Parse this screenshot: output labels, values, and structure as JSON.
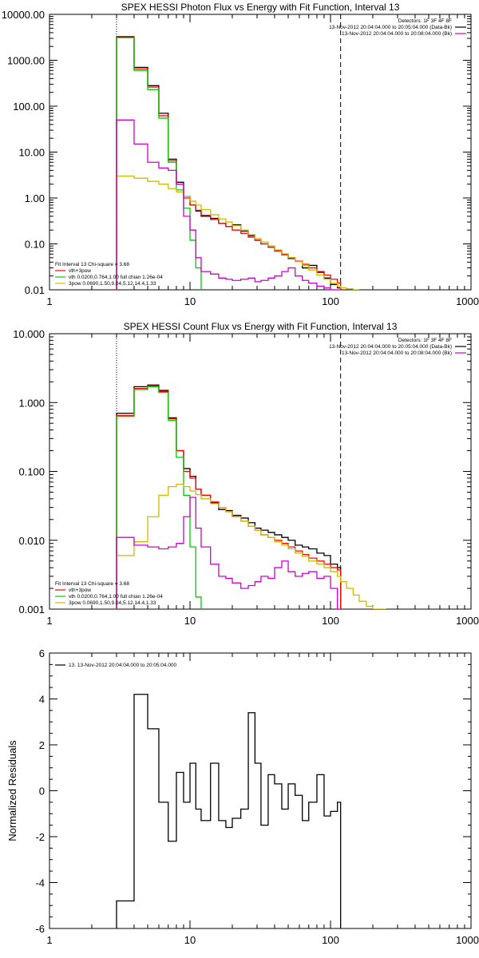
{
  "chart_data": [
    {
      "type": "line",
      "title": "SPEX HESSI Photon Flux vs Energy with Fit Function, Interval 13",
      "xscale": "log",
      "yscale": "log",
      "xlim": [
        1,
        1000
      ],
      "ylim": [
        0.01,
        10000
      ],
      "xticks": [
        "1",
        "10",
        "100",
        "1000"
      ],
      "yticks": [
        "0.01",
        "0.10",
        "1.00",
        "10.00",
        "100.00",
        "1000.00",
        "10000.00"
      ],
      "vlines": [
        3,
        118
      ],
      "info_lines": [
        "Detectors: 1F 3F 4F 8F",
        "13-Nov-2012 20:04:04.000 to 20:05:04.000 (Data-Bk)",
        "13-Nov-2012 20:04:04.000 to 20:08:04.000 (Bk)"
      ],
      "fit_header": "Fit Interval 13    Chi-square = 3.68",
      "legend": [
        {
          "label": "vth+3pow",
          "color": "#ff0000"
        },
        {
          "label": "vth 0.0200,0.764,1.00  full chian 1.26e-04",
          "color": "#00cc00"
        },
        {
          "label": "3pow 0.0690,1.50,9.04,5.12,14.4,1.33",
          "color": "#d4b800"
        }
      ],
      "series": [
        {
          "name": "Data-Bk",
          "color": "#000000",
          "edges": [
            3,
            4,
            5,
            6,
            7,
            8,
            9,
            10,
            11,
            12,
            14,
            16,
            18,
            20,
            23,
            26,
            29,
            32,
            36,
            40,
            45,
            50,
            56,
            63,
            70,
            80,
            90,
            100,
            112,
            118
          ],
          "values": [
            3200,
            700,
            280,
            70,
            7,
            2.2,
            1.1,
            0.7,
            0.52,
            0.4,
            0.36,
            0.28,
            0.24,
            0.26,
            0.19,
            0.15,
            0.12,
            0.1,
            0.085,
            0.07,
            0.058,
            0.048,
            0.042,
            0.03,
            0.034,
            0.024,
            0.018,
            0.013,
            0.011
          ]
        },
        {
          "name": "vth+3pow",
          "color": "#ff0000",
          "edges": [
            3,
            4,
            5,
            6,
            7,
            8,
            9,
            10,
            11,
            12,
            14,
            16,
            18,
            20,
            23,
            26,
            29,
            32,
            36,
            40,
            45,
            50,
            56,
            63,
            70,
            80,
            90,
            100,
            112,
            118
          ],
          "values": [
            3300,
            650,
            260,
            62,
            6.5,
            2.0,
            1.0,
            0.7,
            0.54,
            0.42,
            0.34,
            0.28,
            0.24,
            0.2,
            0.17,
            0.14,
            0.12,
            0.1,
            0.085,
            0.07,
            0.059,
            0.05,
            0.042,
            0.036,
            0.03,
            0.025,
            0.021,
            0.017,
            0.014
          ]
        },
        {
          "name": "vth",
          "color": "#00cc00",
          "edges": [
            3,
            4,
            5,
            6,
            7,
            8,
            9,
            10,
            11,
            12
          ],
          "values": [
            3100,
            600,
            230,
            55,
            6.0,
            1.5,
            0.6,
            0.12,
            0.03
          ]
        },
        {
          "name": "3pow",
          "color": "#d4b800",
          "edges": [
            3,
            4,
            5,
            6,
            7,
            8,
            9,
            10,
            11,
            12,
            14,
            16,
            18,
            20,
            23,
            26,
            29,
            32,
            36,
            40,
            45,
            50,
            56,
            63,
            70,
            80,
            90,
            100,
            112,
            118,
            130,
            145,
            160
          ],
          "values": [
            3.0,
            2.7,
            2.3,
            2.0,
            1.6,
            1.35,
            1.1,
            0.85,
            0.7,
            0.56,
            0.43,
            0.35,
            0.3,
            0.25,
            0.2,
            0.16,
            0.13,
            0.11,
            0.09,
            0.074,
            0.061,
            0.05,
            0.041,
            0.034,
            0.027,
            0.021,
            0.017,
            0.014,
            0.012,
            0.011,
            0.0105,
            0.01
          ]
        },
        {
          "name": "Bk",
          "color": "#d000d0",
          "edges": [
            3,
            4,
            5,
            6,
            7,
            8,
            9,
            10,
            11,
            12,
            14,
            16,
            18,
            20,
            23,
            26,
            29,
            32,
            36,
            40,
            45,
            50,
            56,
            63,
            70,
            80,
            90,
            100,
            112,
            118
          ],
          "values": [
            50,
            15,
            6.0,
            4.5,
            4.0,
            2.0,
            0.4,
            0.2,
            0.05,
            0.025,
            0.022,
            0.018,
            0.017,
            0.016,
            0.017,
            0.018,
            0.015,
            0.016,
            0.018,
            0.02,
            0.025,
            0.03,
            0.02,
            0.016,
            0.014,
            0.012,
            0.011,
            0.01,
            0.01
          ]
        }
      ]
    },
    {
      "type": "line",
      "title": "SPEX HESSI Count Flux vs Energy with Fit Function, Interval 13",
      "xscale": "log",
      "yscale": "log",
      "xlim": [
        1,
        1000
      ],
      "ylim": [
        0.001,
        10
      ],
      "xticks": [
        "1",
        "10",
        "100",
        "1000"
      ],
      "yticks": [
        "0.001",
        "0.010",
        "0.100",
        "1.000",
        "10.000"
      ],
      "vlines": [
        3,
        118
      ],
      "info_lines": [
        "Detectors: 1F 3F 4F 8F",
        "13-Nov-2012 20:04:04.000 to 20:05:04.000 (Data-Bk)",
        "13-Nov-2012 20:04:04.000 to 20:08:04.000 (Bk)"
      ],
      "fit_header": "Fit Interval 13    Chi-square = 3.68",
      "legend": [
        {
          "label": "vth+3pow",
          "color": "#ff0000"
        },
        {
          "label": "vth 0.0200,0.764,1.00  full chian 1.26e-04",
          "color": "#00cc00"
        },
        {
          "label": "3pow 0.0690,1.50,9.04,5.12,14.4,1.33",
          "color": "#d4b800"
        }
      ],
      "series": [
        {
          "name": "Data-Bk",
          "color": "#000000",
          "edges": [
            3,
            4,
            5,
            6,
            7,
            8,
            9,
            10,
            11,
            12,
            14,
            16,
            18,
            20,
            23,
            26,
            29,
            32,
            36,
            40,
            45,
            50,
            56,
            63,
            70,
            80,
            90,
            100,
            112,
            118
          ],
          "values": [
            0.7,
            1.7,
            1.8,
            1.5,
            0.6,
            0.2,
            0.11,
            0.085,
            0.055,
            0.045,
            0.035,
            0.028,
            0.027,
            0.023,
            0.021,
            0.018,
            0.015,
            0.014,
            0.013,
            0.012,
            0.011,
            0.01,
            0.0085,
            0.008,
            0.0075,
            0.0065,
            0.006,
            0.0045,
            0.004
          ]
        },
        {
          "name": "vth+3pow",
          "color": "#ff0000",
          "edges": [
            3,
            4,
            5,
            6,
            7,
            8,
            9,
            10,
            11,
            12,
            14,
            16,
            18,
            20,
            23,
            26,
            29,
            32,
            36,
            40,
            45,
            50,
            56,
            63,
            70,
            80,
            90,
            100,
            112,
            118
          ],
          "values": [
            0.65,
            1.6,
            1.75,
            1.45,
            0.58,
            0.2,
            0.1,
            0.08,
            0.055,
            0.045,
            0.036,
            0.03,
            0.026,
            0.022,
            0.019,
            0.016,
            0.014,
            0.012,
            0.011,
            0.01,
            0.009,
            0.008,
            0.007,
            0.0062,
            0.0055,
            0.005,
            0.0045,
            0.004,
            0.0037
          ]
        },
        {
          "name": "vth",
          "color": "#00cc00",
          "edges": [
            3,
            4,
            5,
            6,
            7,
            8,
            9,
            10,
            11,
            12
          ],
          "values": [
            0.63,
            1.55,
            1.7,
            1.4,
            0.55,
            0.16,
            0.045,
            0.008,
            0.0015
          ]
        },
        {
          "name": "3pow",
          "color": "#d4b800",
          "edges": [
            3,
            4,
            5,
            6,
            7,
            8,
            9,
            10,
            11,
            12,
            14,
            16,
            18,
            20,
            23,
            26,
            29,
            32,
            36,
            40,
            45,
            50,
            56,
            63,
            70,
            80,
            90,
            100,
            112,
            118,
            130,
            145,
            160,
            180,
            200,
            220,
            250
          ],
          "values": [
            0.006,
            0.0095,
            0.022,
            0.045,
            0.06,
            0.065,
            0.06,
            0.052,
            0.046,
            0.04,
            0.034,
            0.03,
            0.026,
            0.022,
            0.019,
            0.016,
            0.014,
            0.012,
            0.011,
            0.0095,
            0.0085,
            0.0075,
            0.0065,
            0.0058,
            0.005,
            0.0045,
            0.004,
            0.0035,
            0.003,
            0.0025,
            0.002,
            0.0016,
            0.0013,
            0.0011,
            0.001,
            0.001
          ]
        },
        {
          "name": "Bk",
          "color": "#d000d0",
          "edges": [
            3,
            4,
            5,
            6,
            7,
            8,
            9,
            10,
            11,
            12,
            14,
            16,
            18,
            20,
            23,
            26,
            29,
            32,
            36,
            40,
            45,
            50,
            56,
            63,
            70,
            80,
            90,
            100,
            112,
            118
          ],
          "values": [
            0.011,
            0.0085,
            0.008,
            0.0075,
            0.008,
            0.009,
            0.022,
            0.042,
            0.015,
            0.008,
            0.0045,
            0.003,
            0.0028,
            0.0024,
            0.002,
            0.0022,
            0.0025,
            0.003,
            0.0028,
            0.004,
            0.005,
            0.0035,
            0.003,
            0.0033,
            0.0035,
            0.0028,
            0.003,
            0.002,
            0.001
          ]
        }
      ]
    },
    {
      "type": "line",
      "title": "",
      "xscale": "log",
      "yscale": "linear",
      "xlim": [
        1,
        1000
      ],
      "ylim": [
        -6,
        6
      ],
      "xticks": [
        "1",
        "10",
        "100",
        "1000"
      ],
      "yticks": [
        "-6",
        "-4",
        "-2",
        "0",
        "2",
        "4",
        "6"
      ],
      "ylabel": "Normalized Residuals",
      "legend": [
        {
          "label": "13. 13-Nov-2012 20:04:04.000 to 20:05:04.000",
          "color": "#000000"
        }
      ],
      "series": [
        {
          "name": "residuals",
          "color": "#000000",
          "edges": [
            3,
            4,
            5,
            6,
            7,
            8,
            9,
            10,
            11,
            12,
            14,
            16,
            18,
            20,
            23,
            26,
            29,
            32,
            36,
            40,
            45,
            50,
            56,
            63,
            70,
            80,
            90,
            100,
            112,
            118
          ],
          "values": [
            -4.8,
            4.2,
            2.7,
            -0.5,
            -2.2,
            0.8,
            -0.5,
            1.2,
            -0.8,
            -1.3,
            1.2,
            -1.3,
            -1.6,
            -1.2,
            -0.8,
            3.4,
            1.2,
            -1.5,
            0.7,
            0.3,
            -0.8,
            0.3,
            -0.2,
            -1.3,
            -0.5,
            0.7,
            -1.1,
            -0.9,
            -0.5
          ]
        }
      ]
    }
  ]
}
